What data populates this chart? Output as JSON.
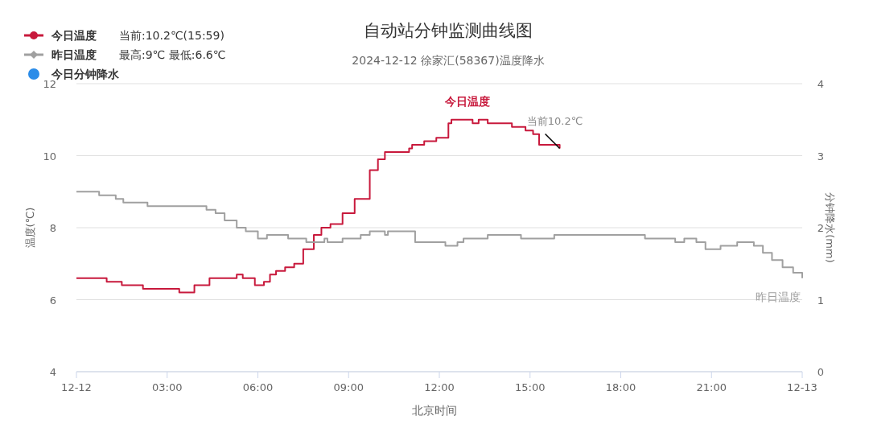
{
  "chart_data": {
    "type": "step",
    "title": "自动站分钟监测曲线图",
    "subtitle": "2024-12-12 徐家汇(58367)温度降水",
    "xlabel": "北京时间",
    "ylabel": "温度(℃)",
    "y2label": "分钟降水(mm)",
    "xlim": [
      0,
      24
    ],
    "xticks": [
      {
        "value": 0,
        "label": "12-12"
      },
      {
        "value": 3,
        "label": "03:00"
      },
      {
        "value": 6,
        "label": "06:00"
      },
      {
        "value": 9,
        "label": "09:00"
      },
      {
        "value": 12,
        "label": "12:00"
      },
      {
        "value": 15,
        "label": "15:00"
      },
      {
        "value": 18,
        "label": "18:00"
      },
      {
        "value": 21,
        "label": "21:00"
      },
      {
        "value": 24,
        "label": "12-13"
      }
    ],
    "ylim": [
      4,
      12
    ],
    "yticks": [
      4,
      6,
      8,
      10,
      12
    ],
    "y2lim": [
      0,
      4
    ],
    "y2ticks": [
      0,
      1,
      2,
      3,
      4
    ],
    "grid": "y",
    "legend": "top left",
    "annotations": [
      "当前:10.2℃(15:59)",
      "最高:9℃ 最低:6.6℃",
      {
        "text": "当前10.2℃",
        "x": 15.98,
        "y": 10.2
      }
    ],
    "series": [
      {
        "name": "今日温度",
        "color": "#c8193c",
        "x": [
          0,
          1.0,
          1.5,
          2.2,
          3.4,
          3.9,
          4.4,
          5.3,
          5.5,
          5.9,
          6.2,
          6.4,
          6.6,
          6.9,
          7.2,
          7.5,
          7.85,
          8.1,
          8.4,
          8.8,
          9.2,
          9.7,
          9.97,
          10.2,
          11.0,
          11.1,
          11.5,
          11.9,
          12.3,
          12.4,
          13.1,
          13.3,
          13.6,
          13.9,
          14.4,
          14.85,
          15.1,
          15.3,
          15.98
        ],
        "values": [
          6.6,
          6.5,
          6.4,
          6.3,
          6.2,
          6.4,
          6.6,
          6.7,
          6.6,
          6.4,
          6.5,
          6.7,
          6.8,
          6.9,
          7.0,
          7.4,
          7.8,
          8.0,
          8.1,
          8.4,
          8.8,
          9.6,
          9.9,
          10.1,
          10.2,
          10.3,
          10.4,
          10.5,
          10.9,
          11.0,
          10.9,
          11.0,
          10.9,
          10.9,
          10.8,
          10.7,
          10.6,
          10.3,
          10.2
        ]
      },
      {
        "name": "昨日温度",
        "color": "#a0a0a0",
        "x": [
          0,
          0.75,
          1.3,
          1.55,
          2.35,
          4.3,
          4.6,
          4.9,
          5.3,
          5.6,
          6.0,
          6.3,
          7.0,
          7.6,
          8.2,
          8.3,
          8.8,
          9.4,
          9.7,
          10.2,
          10.3,
          11.2,
          12.2,
          12.6,
          12.8,
          13.6,
          14.7,
          15.8,
          18.8,
          19.8,
          20.1,
          20.5,
          20.8,
          21.3,
          21.85,
          22.4,
          22.7,
          23.0,
          23.35,
          23.7,
          24
        ],
        "values": [
          9.0,
          8.9,
          8.8,
          8.7,
          8.6,
          8.5,
          8.4,
          8.2,
          8.0,
          7.9,
          7.7,
          7.8,
          7.7,
          7.6,
          7.7,
          7.6,
          7.7,
          7.8,
          7.9,
          7.8,
          7.9,
          7.6,
          7.5,
          7.6,
          7.7,
          7.8,
          7.7,
          7.8,
          7.7,
          7.6,
          7.7,
          7.6,
          7.4,
          7.5,
          7.6,
          7.5,
          7.3,
          7.1,
          6.9,
          6.75,
          6.6
        ]
      },
      {
        "name": "今日分钟降水",
        "type": "scatter",
        "color": "#2b8ce8"
      }
    ]
  }
}
